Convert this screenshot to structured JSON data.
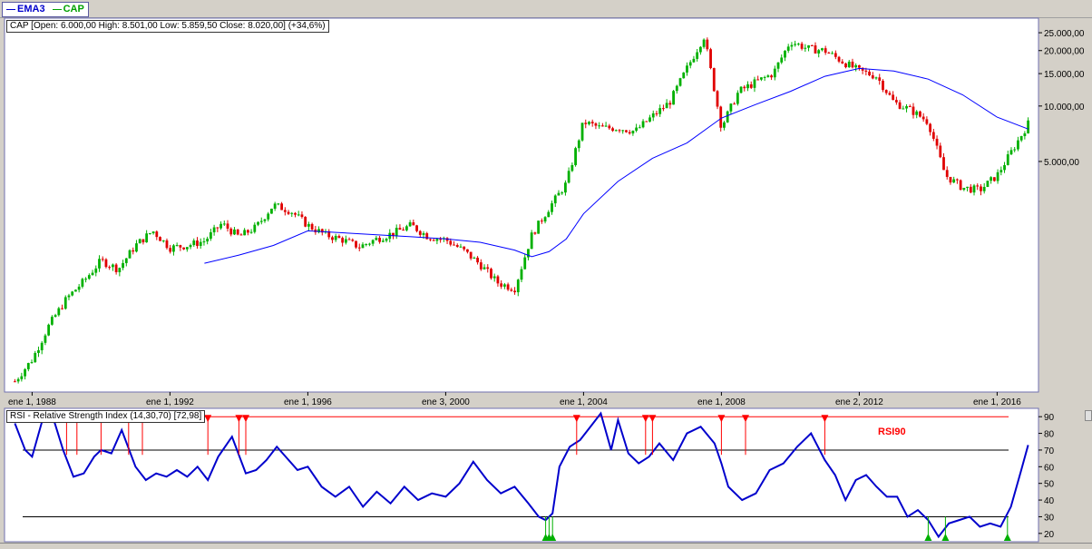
{
  "legend": {
    "items": [
      {
        "label": "EMA3",
        "color": "#0000cc"
      },
      {
        "label": "CAP",
        "color": "#00a000"
      }
    ]
  },
  "colors": {
    "up": "#00b000",
    "down": "#e00000",
    "ema": "#0000ff",
    "rsi": "#0000cc",
    "rsi_overbought": "#ff0000",
    "rsi_oversold": "#00b000"
  },
  "chart_data": [
    {
      "type": "candlestick",
      "title": "CAP [Open: 6.000,00  High: 8.501,00  Low: 5.859,50  Close: 8.020,00] (+34,6%)",
      "x_tick_labels": [
        "ene 1, 1988",
        "ene 1, 1992",
        "ene 1, 1996",
        "ene 3, 2000",
        "ene 1, 2004",
        "ene 1, 2008",
        "ene 2, 2012",
        "ene 1, 2016"
      ],
      "x_ticks": [
        1988,
        1992,
        1996,
        2000,
        2004,
        2008,
        2012,
        2016
      ],
      "xlim": [
        1987.2,
        2017.2
      ],
      "y_scale": "log",
      "y_tick_labels": [
        "25.000,00",
        "20.000,00",
        "15.000,00",
        "10.000,00",
        "5.000,00"
      ],
      "y_ticks": [
        25000,
        20000,
        15000,
        10000,
        5000
      ],
      "ylim": [
        280,
        30000
      ],
      "series": [
        {
          "name": "CAP",
          "x": [
            1987.5,
            1988.0,
            1988.5,
            1989.0,
            1989.5,
            1990.0,
            1990.5,
            1991.0,
            1991.5,
            1992.0,
            1992.5,
            1993.0,
            1993.5,
            1994.0,
            1994.5,
            1995.0,
            1995.5,
            1996.0,
            1996.5,
            1997.0,
            1997.5,
            1998.0,
            1998.5,
            1999.0,
            1999.5,
            2000.0,
            2000.5,
            2001.0,
            2001.5,
            2002.0,
            2002.5,
            2003.0,
            2003.5,
            2004.0,
            2004.5,
            2005.0,
            2005.5,
            2006.0,
            2006.5,
            2007.0,
            2007.5,
            2008.0,
            2008.5,
            2009.0,
            2009.5,
            2010.0,
            2010.5,
            2011.0,
            2011.5,
            2012.0,
            2012.5,
            2013.0,
            2013.5,
            2014.0,
            2014.5,
            2015.0,
            2015.5,
            2016.0,
            2016.5,
            2016.9
          ],
          "y": [
            320,
            420,
            650,
            900,
            1120,
            1450,
            1300,
            1750,
            2100,
            1700,
            1750,
            1850,
            2300,
            1950,
            2200,
            2900,
            2700,
            2250,
            2000,
            1880,
            1720,
            1900,
            2050,
            2250,
            1950,
            1880,
            1650,
            1380,
            1100,
            1020,
            2000,
            2800,
            3800,
            8200,
            7600,
            7600,
            7300,
            8800,
            10500,
            16000,
            24000,
            7700,
            12000,
            13500,
            15000,
            22500,
            20500,
            20000,
            17500,
            15500,
            14500,
            10500,
            9500,
            8200,
            4200,
            3600,
            3500,
            4200,
            6000,
            8020
          ]
        },
        {
          "name": "EMA3",
          "x": [
            1993.0,
            1994.0,
            1995.0,
            1996.0,
            1997.0,
            1998.0,
            1999.0,
            2000.0,
            2001.0,
            2002.0,
            2002.5,
            2003.0,
            2003.5,
            2004.0,
            2005.0,
            2006.0,
            2007.0,
            2008.0,
            2009.0,
            2010.0,
            2011.0,
            2012.0,
            2013.0,
            2014.0,
            2015.0,
            2016.0,
            2016.9
          ],
          "y": [
            1400,
            1550,
            1750,
            2100,
            2050,
            2000,
            1950,
            1900,
            1820,
            1650,
            1520,
            1620,
            1900,
            2600,
            3900,
            5200,
            6300,
            8600,
            10200,
            12000,
            14500,
            16000,
            15500,
            14000,
            11500,
            8700,
            7500
          ]
        }
      ]
    },
    {
      "type": "line",
      "title": "RSI - Relative Strength Index (14,30,70) [72,98]",
      "label": "RSI90",
      "y_tick_labels": [
        "90",
        "80",
        "70",
        "60",
        "50",
        "40",
        "30",
        "20"
      ],
      "y_ticks": [
        90,
        80,
        70,
        60,
        50,
        40,
        30,
        20
      ],
      "ylim": [
        15,
        95
      ],
      "levels": [
        90,
        70,
        30
      ],
      "series": [
        {
          "name": "RSI",
          "x": [
            1987.5,
            1987.8,
            1988.0,
            1988.3,
            1988.6,
            1988.9,
            1989.2,
            1989.5,
            1989.8,
            1990.0,
            1990.3,
            1990.6,
            1991.0,
            1991.3,
            1991.6,
            1991.9,
            1992.2,
            1992.5,
            1992.8,
            1993.1,
            1993.4,
            1993.8,
            1994.2,
            1994.5,
            1994.8,
            1995.1,
            1995.4,
            1995.7,
            1996.0,
            1996.4,
            1996.8,
            1997.2,
            1997.6,
            1998.0,
            1998.4,
            1998.8,
            1999.2,
            1999.6,
            2000.0,
            2000.4,
            2000.8,
            2001.2,
            2001.6,
            2002.0,
            2002.4,
            2002.7,
            2002.9,
            2003.1,
            2003.3,
            2003.6,
            2003.9,
            2004.2,
            2004.5,
            2004.8,
            2005.0,
            2005.3,
            2005.6,
            2005.9,
            2006.2,
            2006.6,
            2007.0,
            2007.4,
            2007.8,
            2008.0,
            2008.2,
            2008.6,
            2009.0,
            2009.4,
            2009.8,
            2010.2,
            2010.6,
            2011.0,
            2011.3,
            2011.6,
            2011.9,
            2012.2,
            2012.5,
            2012.8,
            2013.1,
            2013.4,
            2013.7,
            2014.0,
            2014.3,
            2014.6,
            2014.9,
            2015.2,
            2015.5,
            2015.8,
            2016.1,
            2016.4,
            2016.7,
            2016.9
          ],
          "x_note": "",
          "y": [
            86,
            70,
            66,
            88,
            90,
            70,
            54,
            56,
            66,
            70,
            68,
            82,
            60,
            52,
            56,
            54,
            58,
            54,
            60,
            52,
            66,
            78,
            56,
            58,
            64,
            72,
            65,
            58,
            60,
            48,
            42,
            48,
            36,
            45,
            38,
            48,
            40,
            44,
            42,
            50,
            63,
            52,
            44,
            48,
            38,
            30,
            28,
            32,
            60,
            72,
            76,
            84,
            92,
            70,
            88,
            68,
            62,
            66,
            74,
            64,
            80,
            84,
            74,
            62,
            48,
            40,
            44,
            58,
            62,
            72,
            80,
            64,
            55,
            40,
            52,
            55,
            48,
            42,
            42,
            30,
            34,
            28,
            18,
            26,
            28,
            30,
            24,
            26,
            24,
            36,
            58,
            73
          ],
          "y_note": ""
        }
      ],
      "overbought_signals_x": [
        1989.0,
        1989.3,
        1990.0,
        1990.8,
        1991.2,
        1993.1,
        1994.0,
        1994.2,
        2003.8,
        2005.8,
        2006.0,
        2008.0,
        2008.7,
        2011.0
      ],
      "oversold_signals_x": [
        2002.9,
        2003.0,
        2003.1,
        2014.0,
        2014.5,
        2016.3
      ]
    }
  ]
}
